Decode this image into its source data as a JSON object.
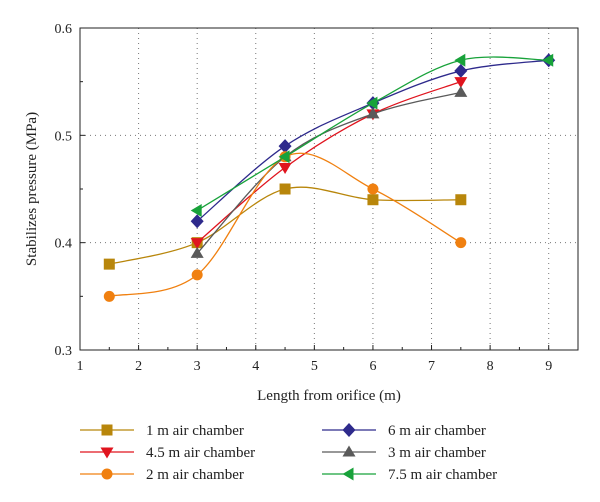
{
  "chart_data": {
    "type": "line",
    "title": "",
    "xlabel": "Length from orifice (m)",
    "ylabel": "Stabilizes pressure (MPa)",
    "xlim": [
      1,
      9.5
    ],
    "ylim": [
      0.3,
      0.6
    ],
    "xticks": [
      1,
      2,
      3,
      4,
      5,
      6,
      7,
      8,
      9
    ],
    "yticks": [
      0.3,
      0.4,
      0.5,
      0.6
    ],
    "ytick_labels": [
      "0.3",
      "0.4",
      "0.5",
      "0.6"
    ],
    "grid": "dotted",
    "legend_placement": "bottom",
    "series": [
      {
        "name": "1 m air chamber",
        "color": "#b8860b",
        "marker": "square",
        "x": [
          1.5,
          3,
          4.5,
          6,
          7.5
        ],
        "y": [
          0.38,
          0.4,
          0.45,
          0.44,
          0.44
        ]
      },
      {
        "name": "6 m air chamber",
        "color": "#2e2a8c",
        "marker": "diamond",
        "x": [
          3,
          4.5,
          6,
          7.5,
          9
        ],
        "y": [
          0.42,
          0.49,
          0.53,
          0.56,
          0.57
        ]
      },
      {
        "name": "4.5 m air chamber",
        "color": "#e0141e",
        "marker": "triangle-down",
        "x": [
          3,
          4.5,
          6,
          7.5
        ],
        "y": [
          0.4,
          0.47,
          0.52,
          0.55
        ]
      },
      {
        "name": "3 m air chamber",
        "color": "#5a5a5a",
        "marker": "triangle-up",
        "x": [
          3,
          4.5,
          6,
          7.5
        ],
        "y": [
          0.39,
          0.48,
          0.52,
          0.54
        ]
      },
      {
        "name": "2 m air chamber",
        "color": "#f08010",
        "marker": "circle",
        "x": [
          1.5,
          3,
          4.5,
          6,
          7.5
        ],
        "y": [
          0.35,
          0.37,
          0.48,
          0.45,
          0.4
        ]
      },
      {
        "name": "7.5 m air chamber",
        "color": "#18a23a",
        "marker": "triangle-left",
        "x": [
          3,
          4.5,
          6,
          7.5,
          9
        ],
        "y": [
          0.43,
          0.48,
          0.53,
          0.57,
          0.57
        ]
      }
    ]
  }
}
